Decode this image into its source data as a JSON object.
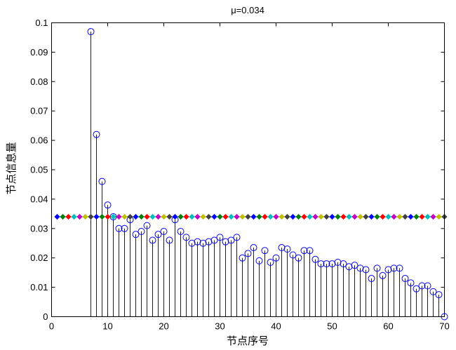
{
  "chart_data": {
    "type": "bar",
    "title": "μ=0.034",
    "xlabel": "节点序号",
    "ylabel": "节点信息量",
    "xlim": [
      0,
      70
    ],
    "ylim": [
      0,
      0.1
    ],
    "grid": false,
    "xticks": [
      0,
      10,
      20,
      30,
      40,
      50,
      60,
      70
    ],
    "xtick_labels": [
      "0",
      "10",
      "20",
      "30",
      "40",
      "50",
      "60",
      "70"
    ],
    "yticks": [
      0,
      0.01,
      0.02,
      0.03,
      0.04,
      0.05,
      0.06,
      0.07,
      0.08,
      0.09,
      0.1
    ],
    "ytick_labels": [
      "0",
      "0.01",
      "0.02",
      "0.03",
      "0.04",
      "0.05",
      "0.06",
      "0.07",
      "0.08",
      "0.09",
      "0.1"
    ],
    "series": [
      {
        "style": "stem",
        "marker": "circle",
        "color": "#0000ff",
        "x": [
          7,
          8,
          9,
          10,
          11,
          12,
          13,
          14,
          15,
          16,
          17,
          18,
          19,
          20,
          21,
          22,
          23,
          24,
          25,
          26,
          27,
          28,
          29,
          30,
          31,
          32,
          33,
          34,
          35,
          36,
          37,
          38,
          39,
          40,
          41,
          42,
          43,
          44,
          45,
          46,
          47,
          48,
          49,
          50,
          51,
          52,
          53,
          54,
          55,
          56,
          57,
          58,
          59,
          60,
          61,
          62,
          63,
          64,
          65,
          66,
          67,
          68,
          69,
          70
        ],
        "values": [
          0.097,
          0.062,
          0.046,
          0.038,
          0.034,
          0.03,
          0.03,
          0.033,
          0.028,
          0.029,
          0.031,
          0.026,
          0.028,
          0.029,
          0.026,
          0.033,
          0.029,
          0.027,
          0.025,
          0.0255,
          0.025,
          0.0255,
          0.026,
          0.027,
          0.0255,
          0.026,
          0.027,
          0.02,
          0.0215,
          0.0235,
          0.019,
          0.0225,
          0.0185,
          0.02,
          0.0235,
          0.023,
          0.021,
          0.02,
          0.0225,
          0.0225,
          0.0195,
          0.018,
          0.018,
          0.018,
          0.0185,
          0.018,
          0.017,
          0.0175,
          0.0165,
          0.016,
          0.013,
          0.0165,
          0.014,
          0.016,
          0.0165,
          0.0165,
          0.013,
          0.0115,
          0.0095,
          0.0105,
          0.0105,
          0.0085,
          0.0075,
          0
        ]
      }
    ],
    "reference_line": {
      "y": 0.034,
      "x_start": 1,
      "x_end": 70,
      "line_color": "#000000",
      "marker": "diamond",
      "marker_colors": [
        "#0000ff",
        "#008000",
        "#ff0000",
        "#00bfbf",
        "#bf00bf",
        "#bfbf00",
        "#404040"
      ]
    }
  }
}
